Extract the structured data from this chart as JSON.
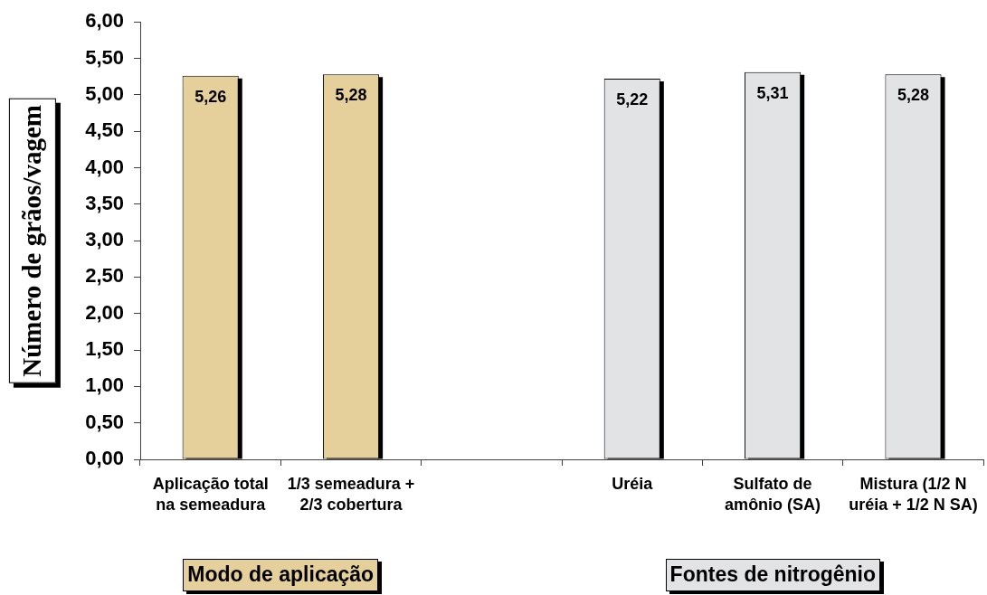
{
  "chart_data": {
    "type": "bar",
    "ylabel": "Número de grãos/vagem",
    "categories": [
      "Aplicação total na semeadura",
      "1/3 semeadura + 2/3 cobertura",
      null,
      "Uréia",
      "Sulfato de amônio (SA)",
      "Mistura (1/2 N uréia + 1/2 N SA)"
    ],
    "values": [
      5.26,
      5.28,
      null,
      5.22,
      5.31,
      5.28
    ],
    "colors": [
      "#e5cf9a",
      "#e5cf9a",
      null,
      "#e1e3e5",
      "#e1e3e5",
      "#e1e3e5"
    ],
    "value_labels": [
      "5,26",
      "5,28",
      null,
      "5,22",
      "5,31",
      "5,28"
    ],
    "ylim": [
      0,
      6
    ],
    "yticks": [
      {
        "value": 0,
        "label": "0,00"
      },
      {
        "value": 0.5,
        "label": "0,50"
      },
      {
        "value": 1,
        "label": "1,00"
      },
      {
        "value": 1.5,
        "label": "1,50"
      },
      {
        "value": 2,
        "label": "2,00"
      },
      {
        "value": 2.5,
        "label": "2,50"
      },
      {
        "value": 3,
        "label": "3,00"
      },
      {
        "value": 3.5,
        "label": "3,50"
      },
      {
        "value": 4,
        "label": "4,00"
      },
      {
        "value": 4.5,
        "label": "4,50"
      },
      {
        "value": 5,
        "label": "5,00"
      },
      {
        "value": 5.5,
        "label": "5,50"
      },
      {
        "value": 6,
        "label": "6,00"
      }
    ],
    "annotations": [
      "Modo de aplicação",
      "Fontes de nitrogênio"
    ]
  }
}
